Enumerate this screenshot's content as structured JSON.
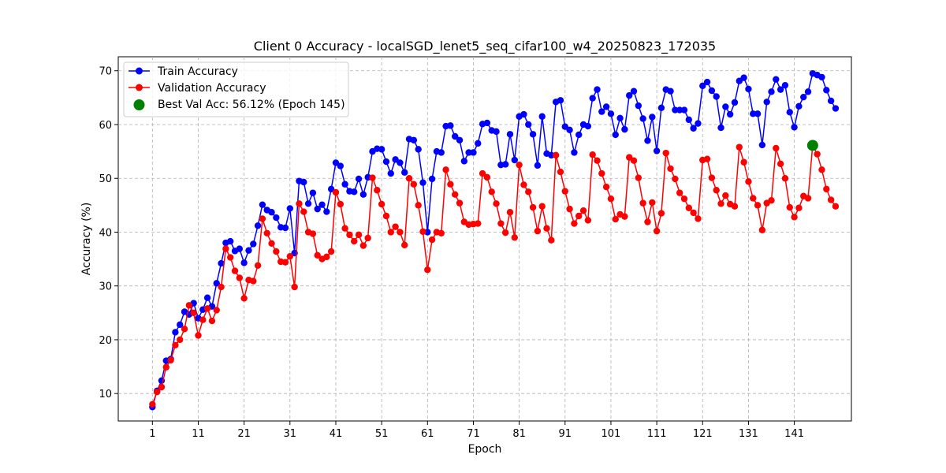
{
  "chart_data": {
    "type": "line",
    "title": "Client 0 Accuracy - localSGD_lenet5_seq_cifar100_w4_20250823_172035",
    "xlabel": "Epoch",
    "ylabel": "Accuracy (%)",
    "xlim": [
      -6.45,
      153.45
    ],
    "ylim": [
      4.9,
      72.6
    ],
    "xticks": [
      1,
      11,
      21,
      31,
      41,
      51,
      61,
      71,
      81,
      91,
      101,
      111,
      121,
      131,
      141
    ],
    "yticks": [
      10,
      20,
      30,
      40,
      50,
      60,
      70
    ],
    "grid": true,
    "legend_position": "top-left",
    "series": [
      {
        "name": "Train Accuracy",
        "color": "#0000ff",
        "marker": "circle",
        "x_start": 1,
        "values": [
          7.5,
          10.5,
          12.4,
          16.1,
          16.4,
          21.4,
          22.8,
          25.2,
          24.7,
          26.8,
          24.0,
          25.6,
          27.8,
          26.2,
          30.5,
          34.2,
          38.0,
          38.3,
          36.5,
          36.9,
          34.3,
          36.6,
          37.8,
          41.2,
          45.1,
          44.1,
          43.7,
          42.7,
          40.9,
          40.8,
          44.4,
          36.1,
          49.5,
          49.3,
          45.3,
          47.3,
          44.3,
          45.1,
          43.8,
          48.0,
          52.9,
          52.3,
          48.9,
          47.6,
          47.5,
          49.9,
          47.0,
          50.2,
          55.0,
          55.5,
          55.4,
          53.1,
          50.9,
          53.5,
          52.9,
          51.1,
          57.3,
          57.1,
          55.4,
          49.2,
          40.0,
          49.9,
          55.0,
          54.8,
          59.7,
          59.8,
          57.8,
          57.1,
          53.2,
          54.8,
          54.8,
          56.5,
          60.1,
          60.3,
          58.9,
          58.7,
          52.5,
          52.6,
          58.2,
          53.4,
          61.5,
          61.9,
          60.0,
          58.2,
          52.4,
          61.5,
          54.6,
          54.3,
          64.2,
          64.5,
          59.6,
          59.0,
          54.8,
          58.1,
          60.0,
          59.7,
          64.9,
          66.5,
          62.4,
          63.3,
          62.0,
          58.1,
          61.2,
          59.1,
          65.4,
          66.2,
          63.5,
          61.1,
          57.0,
          61.4,
          55.1,
          63.1,
          66.5,
          66.2,
          62.7,
          62.7,
          62.7,
          60.9,
          59.3,
          60.2,
          67.2,
          67.9,
          66.3,
          65.2,
          59.4,
          63.3,
          61.9,
          64.1,
          68.1,
          68.7,
          66.6,
          62.0,
          62.0,
          56.2,
          64.2,
          66.1,
          68.4,
          66.5,
          67.3,
          62.3,
          59.5,
          63.4,
          65.1,
          66.1,
          69.5,
          69.2,
          68.8,
          66.4,
          64.4,
          63.0
        ]
      },
      {
        "name": "Validation Accuracy",
        "color": "#ff0000",
        "marker": "circle",
        "x_start": 1,
        "values": [
          8.0,
          10.3,
          11.2,
          14.9,
          16.2,
          19.0,
          20.0,
          22.0,
          26.4,
          25.0,
          20.8,
          23.7,
          25.8,
          23.5,
          25.5,
          29.8,
          36.9,
          35.3,
          32.8,
          31.5,
          27.7,
          31.1,
          30.9,
          33.8,
          42.5,
          39.8,
          37.9,
          36.4,
          34.5,
          34.4,
          35.5,
          29.8,
          45.3,
          43.8,
          40.0,
          39.7,
          35.7,
          35.0,
          35.4,
          36.4,
          47.4,
          45.2,
          40.7,
          39.5,
          38.3,
          39.5,
          37.5,
          38.9,
          50.1,
          47.8,
          45.2,
          43.0,
          40.0,
          41.0,
          40.0,
          37.6,
          50.0,
          48.9,
          45.0,
          40.1,
          33.0,
          38.6,
          40.0,
          39.8,
          51.6,
          48.9,
          47.0,
          45.4,
          41.9,
          41.4,
          41.5,
          41.6,
          50.9,
          50.2,
          47.5,
          45.3,
          41.6,
          39.9,
          43.7,
          39.0,
          52.5,
          48.8,
          47.5,
          44.6,
          40.2,
          44.8,
          40.7,
          38.5,
          54.3,
          51.2,
          47.6,
          44.3,
          41.6,
          43.0,
          44.0,
          42.2,
          54.4,
          53.3,
          50.9,
          48.4,
          46.2,
          42.4,
          43.3,
          42.9,
          53.9,
          53.3,
          50.1,
          45.4,
          41.9,
          45.5,
          40.2,
          43.5,
          54.7,
          51.8,
          49.9,
          47.3,
          46.2,
          44.5,
          43.6,
          42.5,
          53.4,
          53.6,
          50.1,
          47.8,
          45.3,
          46.8,
          45.2,
          44.8,
          55.8,
          53.0,
          49.4,
          46.3,
          45.0,
          40.4,
          45.4,
          45.9,
          55.6,
          52.7,
          50.0,
          44.6,
          42.8,
          44.5,
          46.7,
          46.3,
          56.1,
          54.5,
          51.6,
          48.0,
          46.0,
          44.8
        ]
      }
    ],
    "best_point": {
      "label": "Best Val Acc: 56.12% (Epoch 145)",
      "epoch": 145,
      "value": 56.12,
      "color": "#008000"
    }
  }
}
